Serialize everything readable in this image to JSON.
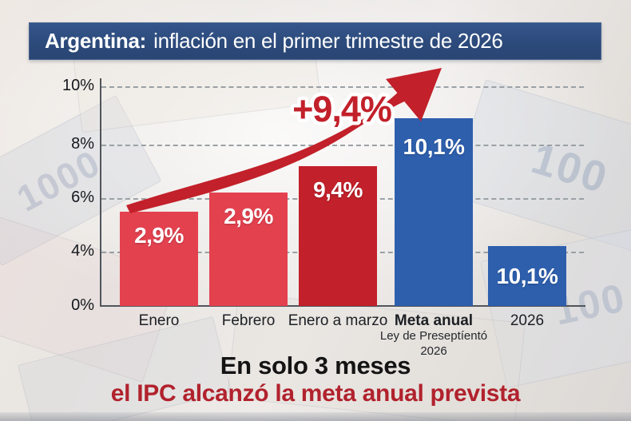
{
  "title": {
    "prefix": "Argentina:",
    "rest": "inflación en el primer trimestre de 2026"
  },
  "chart_data": {
    "type": "bar",
    "title": "Argentina: inflación en el primer trimestre de 2026",
    "categories": [
      "Enero",
      "Febrero",
      "Enero a marzo",
      "Meta anual",
      "2026"
    ],
    "values": [
      2.9,
      2.9,
      9.4,
      10.1,
      10.1
    ],
    "value_labels": [
      "2,9%",
      "2,9%",
      "9,4%",
      "10,1%",
      "10,1%"
    ],
    "drawn_height_percent": [
      5.5,
      6.2,
      7.2,
      8.9,
      4.2
    ],
    "bar_colors": [
      "light_red",
      "light_red",
      "dark_red",
      "blue",
      "blue"
    ],
    "x_bold_category": "Meta anual",
    "x_sublabels": {
      "category": "Meta anual",
      "lines": [
        "Ley de Preseptíentó",
        "2026"
      ]
    },
    "y_ticks": [
      {
        "label": "10%",
        "value": 10
      },
      {
        "label": "8%",
        "value": 8
      },
      {
        "label": "6%",
        "value": 6
      },
      {
        "label": "4%",
        "value": 4
      },
      {
        "label": "0%",
        "value": 0
      }
    ],
    "ylim": [
      0,
      10.5
    ],
    "grid": "dashed-horizontal",
    "legend": "none",
    "annotation": {
      "text": "+9,4%",
      "type": "trend-arrow"
    }
  },
  "colors": {
    "light_red": "#e4414f",
    "dark_red": "#c2202a",
    "blue": "#2e5fad",
    "title_bg": "#2d4b7c",
    "footer_red": "#b1222d"
  },
  "background": {
    "photo_hint_texts": [
      "1000",
      "100",
      "100"
    ]
  },
  "footer": {
    "line1": "En solo 3 meses",
    "line2": "el IPC alcanzó la meta anual prevista"
  }
}
